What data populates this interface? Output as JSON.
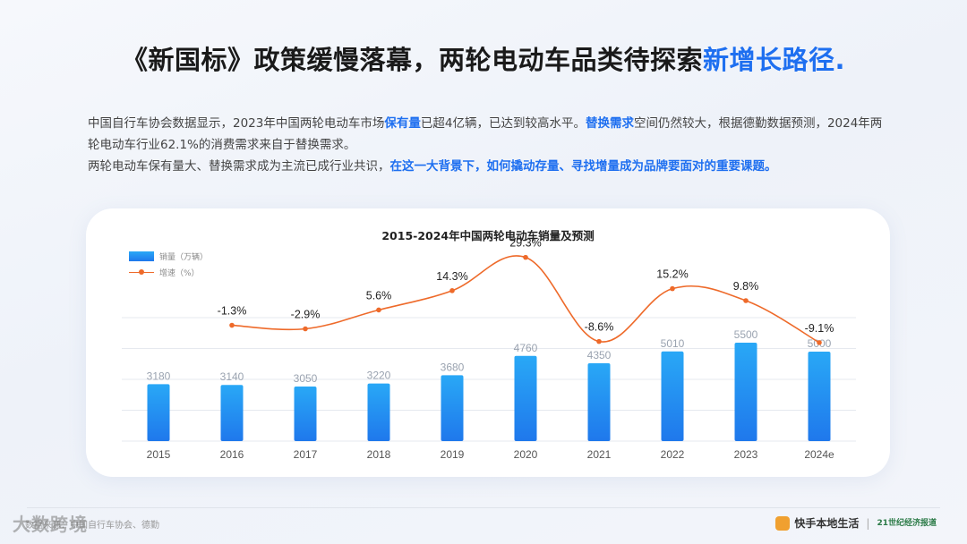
{
  "header": {
    "title_main": "《新国标》政策缓慢落幕，两轮电动车品类待探索",
    "title_highlight": "新增长路径."
  },
  "intro": {
    "p1_a": "中国自行车协会数据显示，2023年中国两轮电动车市场",
    "p1_b": "保有量",
    "p1_c": "已超4亿辆，已达到较高水平。",
    "p1_d": "替换需求",
    "p1_e": "空间仍然较大，根据德勤数据预测，2024年两轮电动车行业62.1%的消费需求来自于替换需求。",
    "p2_a": "两轮电动车保有量大、替换需求成为主流已成行业共识，",
    "p2_b": "在这一大背景下，如何撬动存量、寻找增量成为品牌要面对的重要课题。"
  },
  "chart_data": {
    "type": "bar",
    "title": "2015-2024年中国两轮电动车销量及预测",
    "categories": [
      "2015",
      "2016",
      "2017",
      "2018",
      "2019",
      "2020",
      "2021",
      "2022",
      "2023",
      "2024e"
    ],
    "series": [
      {
        "name": "销量（万辆）",
        "type": "bar",
        "values": [
          3180,
          3140,
          3050,
          3220,
          3680,
          4760,
          4350,
          5010,
          5500,
          5000
        ],
        "labels": [
          "3180",
          "3140",
          "3050",
          "3220",
          "3680",
          "4760",
          "4350",
          "5010",
          "5500",
          "5000"
        ]
      },
      {
        "name": "增速（%）",
        "type": "line",
        "values": [
          null,
          -1.3,
          -2.9,
          5.6,
          14.3,
          29.3,
          -8.6,
          15.2,
          9.8,
          -9.1
        ],
        "labels": [
          "",
          "-1.3%",
          "-2.9%",
          "5.6%",
          "14.3%",
          "29.3%",
          "-8.6%",
          "15.2%",
          "9.8%",
          "-9.1%"
        ]
      }
    ],
    "legend_position": "top-left",
    "grid": true,
    "colors": {
      "bar_top": "#29a8f6",
      "bar_bottom": "#1f78ec",
      "line": "#ee6a2a",
      "grid": "#e6e9ef"
    }
  },
  "footer": {
    "source": "数据来源：中国自行车协会、德勤",
    "watermark": "大数跨境",
    "brand1": "快手本地生活",
    "brand2": "21世纪经济报道"
  }
}
